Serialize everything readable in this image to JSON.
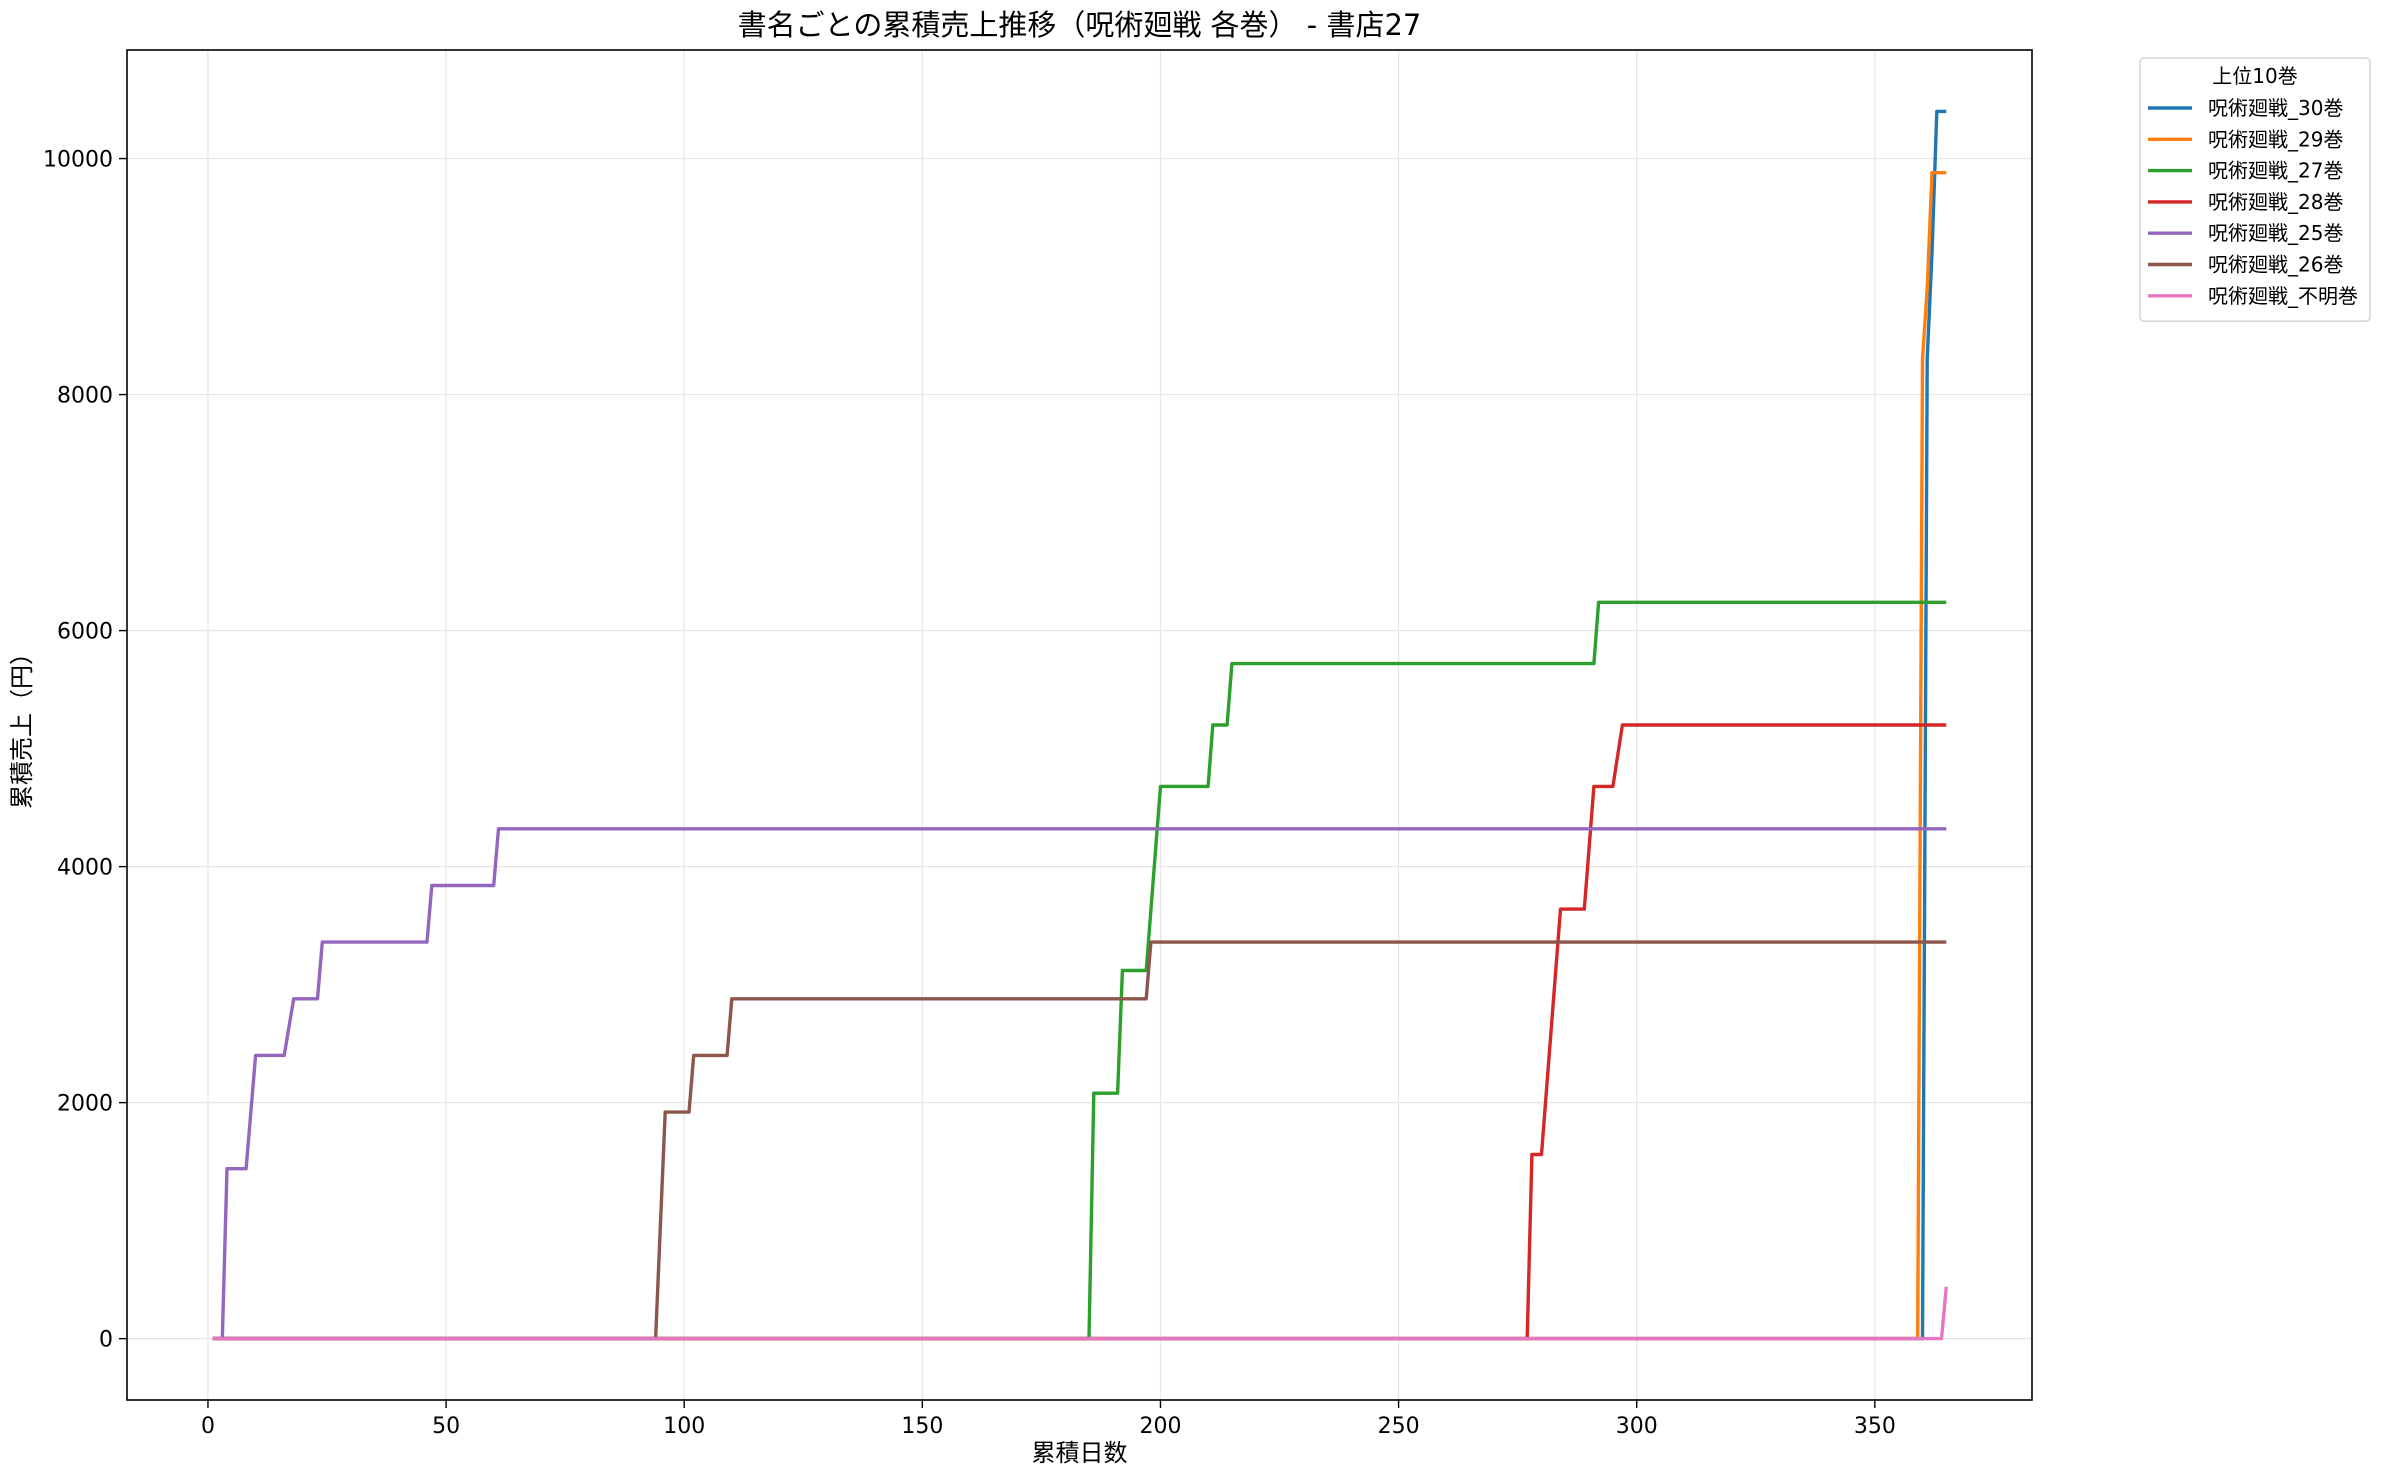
{
  "chart_data": {
    "type": "line",
    "title": "書名ごとの累積売上推移（呪術廻戦 各巻） - 書店27",
    "xlabel": "累積日数",
    "ylabel": "累積売上（円）",
    "xlim": [
      -17,
      383
    ],
    "ylim": [
      -520,
      10920
    ],
    "xticks": [
      0,
      50,
      100,
      150,
      200,
      250,
      300,
      350
    ],
    "yticks": [
      0,
      2000,
      4000,
      6000,
      8000,
      10000
    ],
    "grid": true,
    "legend": {
      "title": "上位10巻",
      "placement": "outside-top-right"
    },
    "series": [
      {
        "name": "呪術廻戦_30巻",
        "color": "#1f77b4",
        "points": [
          [
            1,
            0
          ],
          [
            360,
            0
          ],
          [
            361,
            8300
          ],
          [
            362,
            9200
          ],
          [
            363,
            10400
          ],
          [
            365,
            10400
          ]
        ]
      },
      {
        "name": "呪術廻戦_29巻",
        "color": "#ff7f0e",
        "points": [
          [
            1,
            0
          ],
          [
            359,
            0
          ],
          [
            360,
            8300
          ],
          [
            361,
            8900
          ],
          [
            362,
            9880
          ],
          [
            365,
            9880
          ]
        ]
      },
      {
        "name": "呪術廻戦_27巻",
        "color": "#2ca02c",
        "points": [
          [
            1,
            0
          ],
          [
            185,
            0
          ],
          [
            186,
            2080
          ],
          [
            191,
            2080
          ],
          [
            192,
            3120
          ],
          [
            197,
            3120
          ],
          [
            200,
            4680
          ],
          [
            210,
            4680
          ],
          [
            211,
            5200
          ],
          [
            214,
            5200
          ],
          [
            215,
            5720
          ],
          [
            291,
            5720
          ],
          [
            292,
            6240
          ],
          [
            365,
            6240
          ]
        ]
      },
      {
        "name": "呪術廻戦_28巻",
        "color": "#d62728",
        "points": [
          [
            1,
            0
          ],
          [
            277,
            0
          ],
          [
            278,
            1560
          ],
          [
            280,
            1560
          ],
          [
            284,
            3640
          ],
          [
            289,
            3640
          ],
          [
            291,
            4680
          ],
          [
            295,
            4680
          ],
          [
            297,
            5200
          ],
          [
            365,
            5200
          ]
        ]
      },
      {
        "name": "呪術廻戦_25巻",
        "color": "#9467bd",
        "points": [
          [
            1,
            0
          ],
          [
            3,
            0
          ],
          [
            4,
            1440
          ],
          [
            8,
            1440
          ],
          [
            10,
            2400
          ],
          [
            16,
            2400
          ],
          [
            18,
            2880
          ],
          [
            23,
            2880
          ],
          [
            24,
            3360
          ],
          [
            46,
            3360
          ],
          [
            47,
            3840
          ],
          [
            60,
            3840
          ],
          [
            61,
            4320
          ],
          [
            365,
            4320
          ]
        ]
      },
      {
        "name": "呪術廻戦_26巻",
        "color": "#8c564b",
        "points": [
          [
            1,
            0
          ],
          [
            94,
            0
          ],
          [
            96,
            1920
          ],
          [
            101,
            1920
          ],
          [
            102,
            2400
          ],
          [
            109,
            2400
          ],
          [
            110,
            2880
          ],
          [
            197,
            2880
          ],
          [
            198,
            3360
          ],
          [
            365,
            3360
          ]
        ]
      },
      {
        "name": "呪術廻戦_不明巻",
        "color": "#e377c2",
        "points": [
          [
            1,
            0
          ],
          [
            364,
            0
          ],
          [
            365,
            440
          ]
        ]
      }
    ]
  }
}
